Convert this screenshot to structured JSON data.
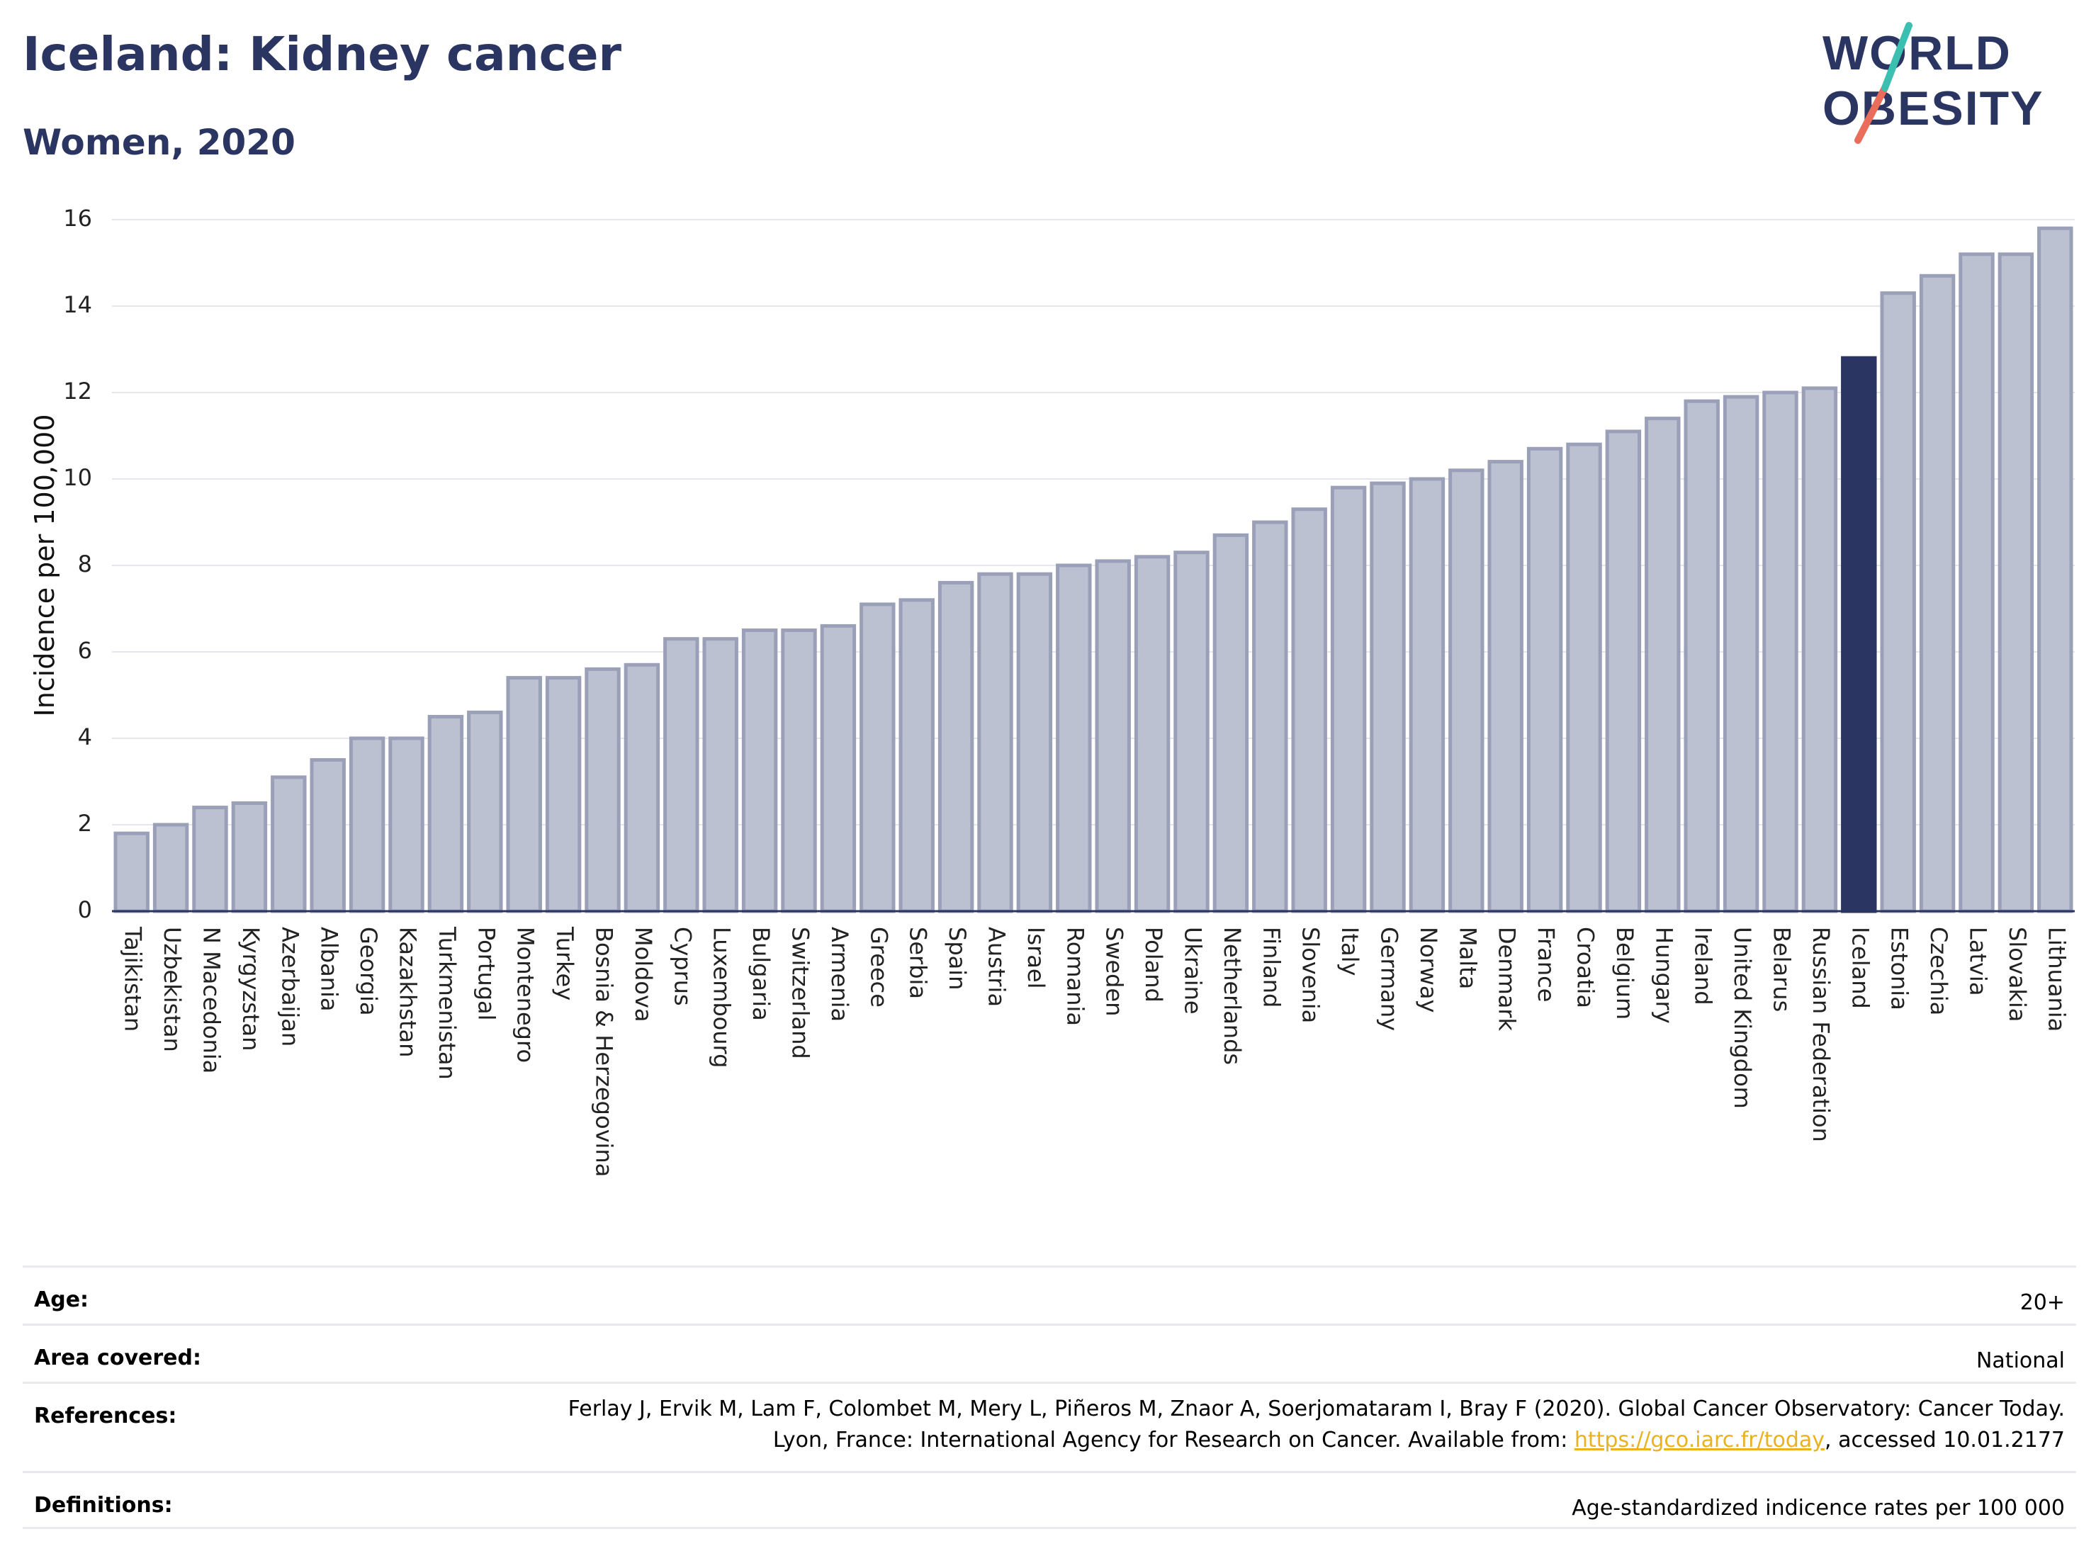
{
  "header": {
    "title": "Iceland: Kidney cancer",
    "subtitle": "Women, 2020",
    "logo_line1": "WORLD",
    "logo_line2": "OBESITY"
  },
  "colors": {
    "highlight": "#2b3562",
    "bar_fill": "#bcc1d1",
    "bar_stroke": "#9aa0b8",
    "heading": "#2b3562",
    "link": "#e9b21f",
    "logo_teal": "#3bbfb0",
    "logo_coral": "#ea6c5a"
  },
  "chart_data": {
    "type": "bar",
    "title": "Iceland: Kidney cancer",
    "subtitle": "Women, 2020",
    "xlabel": "",
    "ylabel": "Incidence per 100,000",
    "ylim": [
      0,
      16
    ],
    "yticks": [
      0,
      2,
      4,
      6,
      8,
      10,
      12,
      14,
      16
    ],
    "grid": true,
    "highlight": "Iceland",
    "categories": [
      "Tajikistan",
      "Uzbekistan",
      "N Macedonia",
      "Kyrgyzstan",
      "Azerbaijan",
      "Albania",
      "Georgia",
      "Kazakhstan",
      "Turkmenistan",
      "Portugal",
      "Montenegro",
      "Turkey",
      "Bosnia & Herzegovina",
      "Moldova",
      "Cyprus",
      "Luxembourg",
      "Bulgaria",
      "Switzerland",
      "Armenia",
      "Greece",
      "Serbia",
      "Spain",
      "Austria",
      "Israel",
      "Romania",
      "Sweden",
      "Poland",
      "Ukraine",
      "Netherlands",
      "Finland",
      "Slovenia",
      "Italy",
      "Germany",
      "Norway",
      "Malta",
      "Denmark",
      "France",
      "Croatia",
      "Belgium",
      "Hungary",
      "Ireland",
      "United Kingdom",
      "Belarus",
      "Russian Federation",
      "Iceland",
      "Estonia",
      "Czechia",
      "Latvia",
      "Slovakia",
      "Lithuania"
    ],
    "values": [
      1.8,
      2.0,
      2.4,
      2.5,
      3.1,
      3.5,
      4.0,
      4.0,
      4.5,
      4.6,
      5.4,
      5.4,
      5.6,
      5.7,
      6.3,
      6.3,
      6.5,
      6.5,
      6.6,
      7.1,
      7.2,
      7.6,
      7.8,
      7.8,
      8.0,
      8.1,
      8.2,
      8.3,
      8.7,
      9.0,
      9.3,
      9.8,
      9.9,
      10.0,
      10.2,
      10.4,
      10.7,
      10.8,
      11.1,
      11.4,
      11.8,
      11.9,
      12.0,
      12.1,
      12.8,
      14.3,
      14.7,
      15.2,
      15.2,
      15.8
    ]
  },
  "meta": [
    {
      "key": "Age:",
      "value": "20+"
    },
    {
      "key": "Area covered:",
      "value": "National"
    },
    {
      "key": "References:",
      "value_pre": "Ferlay J, Ervik M, Lam F, Colombet M, Mery L, Piñeros M, Znaor A, Soerjomataram I, Bray F (2020). Global Cancer Observatory: Cancer Today. Lyon, France: International Agency for Research on Cancer. Available from: ",
      "link": "https://gco.iarc.fr/today",
      "value_post": ", accessed 10.01.2177"
    },
    {
      "key": "Definitions:",
      "value": "Age-standardized indicence rates per 100 000"
    }
  ]
}
